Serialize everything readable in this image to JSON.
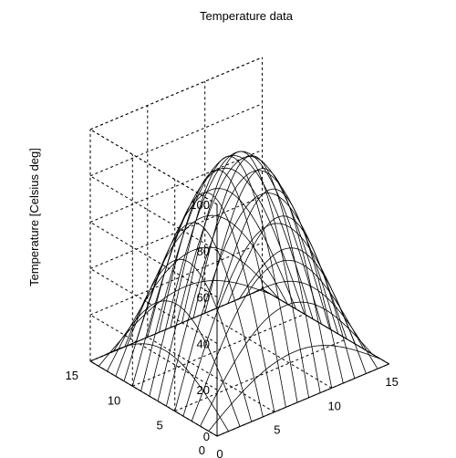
{
  "chart_data": {
    "type": "surface",
    "title": "Temperature data",
    "xlabel": "",
    "ylabel": "",
    "zlabel": "Temperature [Celsius deg]",
    "x_ticks": [
      "0",
      "5",
      "10",
      "15"
    ],
    "y_ticks": [
      "0",
      "5",
      "10",
      "15"
    ],
    "z_ticks": [
      "0",
      "20",
      "40",
      "60",
      "80",
      "100"
    ],
    "xlim": [
      0,
      15
    ],
    "ylim": [
      0,
      15
    ],
    "zlim": [
      0,
      100
    ],
    "grid": true,
    "mesh_size": 15,
    "peak": {
      "x": 7.5,
      "y": 7.5,
      "z": 90
    },
    "surface_model": "z = 90 * sin(pi*x/15) * sin(pi*y/15)"
  }
}
